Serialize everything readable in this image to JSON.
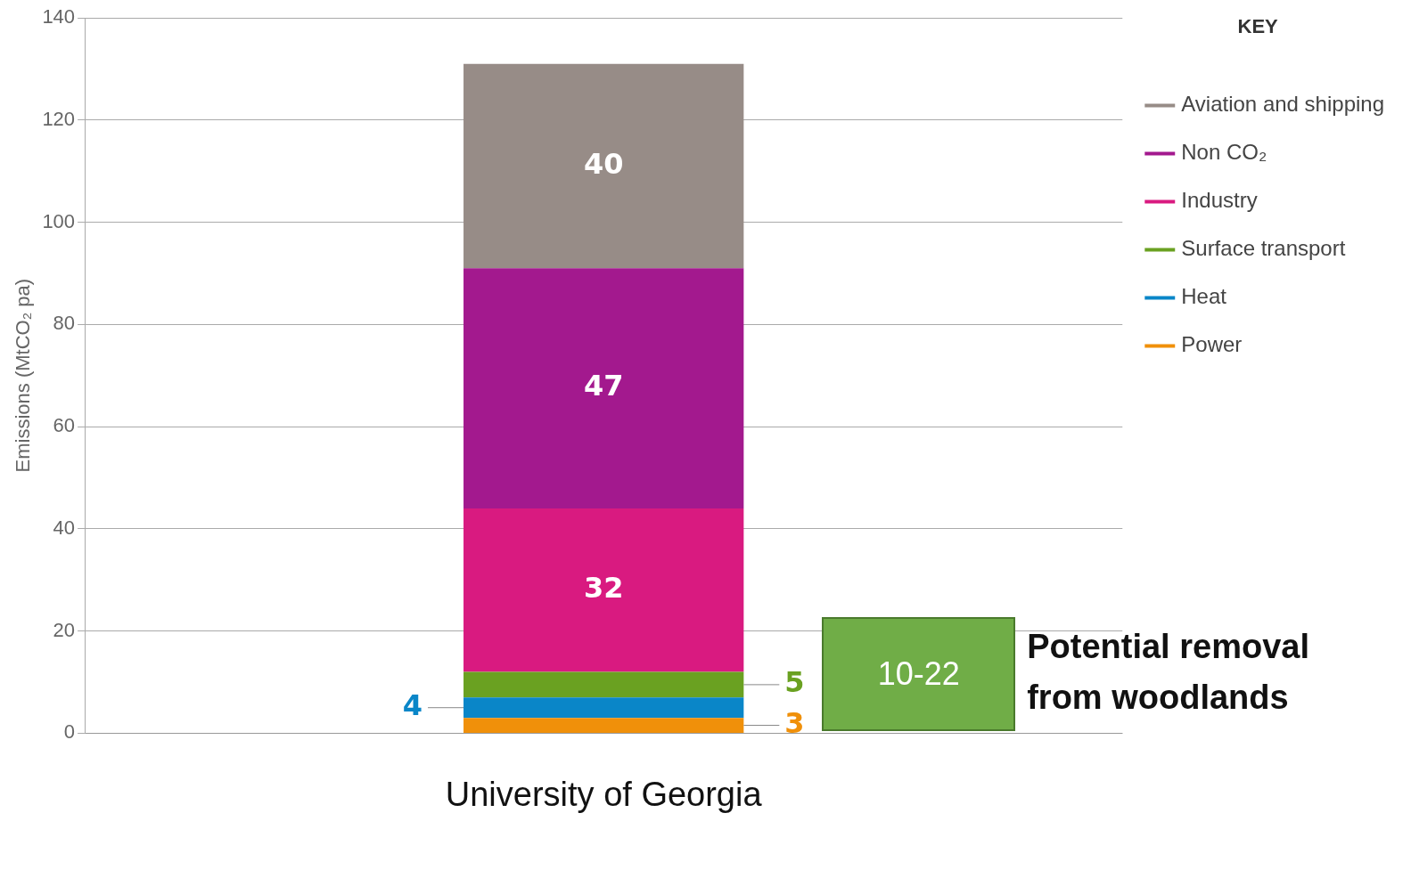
{
  "chart_data": {
    "type": "bar",
    "stacked": true,
    "categories": [
      "University of Georgia"
    ],
    "ylabel": "Emissions (MtCO₂ pa)",
    "legend_title": "KEY",
    "legend": "right",
    "grid": "y",
    "data_labels": true,
    "ylim": [
      0,
      140
    ],
    "yticks": [
      0,
      20,
      40,
      60,
      80,
      100,
      120,
      140
    ],
    "series": [
      {
        "name": "Power",
        "color": "#f0900a",
        "values": [
          3
        ]
      },
      {
        "name": "Heat",
        "color": "#0a86c8",
        "values": [
          4
        ]
      },
      {
        "name": "Surface transport",
        "color": "#6aa121",
        "values": [
          5
        ]
      },
      {
        "name": "Industry",
        "color": "#d91a80",
        "values": [
          32
        ]
      },
      {
        "name": "Non CO₂",
        "color": "#a3198e",
        "values": [
          47
        ]
      },
      {
        "name": "Aviation and shipping",
        "color": "#978c87",
        "values": [
          40
        ]
      }
    ],
    "annotations": [
      "10-22",
      "Potential removal from woodlands"
    ]
  }
}
